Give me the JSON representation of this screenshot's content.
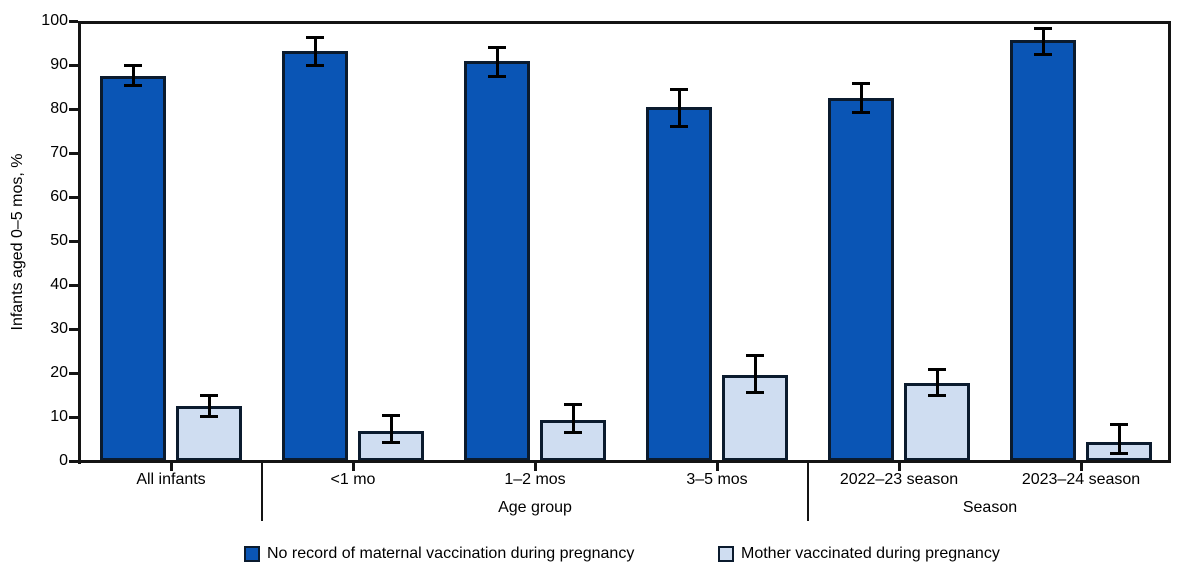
{
  "chart_data": {
    "type": "bar",
    "title": "",
    "ylabel": "Infants aged 0–5 mos, %",
    "ylim": [
      0,
      100
    ],
    "yticks": [
      0,
      10,
      20,
      30,
      40,
      50,
      60,
      70,
      80,
      90,
      100
    ],
    "grid": false,
    "legend_position": "bottom",
    "categories": [
      "All infants",
      "<1 mo",
      "1–2 mos",
      "3–5 mos",
      "2022–23 season",
      "2023–24 season"
    ],
    "sections": [
      {
        "label": "Age group",
        "start": 1,
        "end": 3
      },
      {
        "label": "Season",
        "start": 4,
        "end": 5
      }
    ],
    "series": [
      {
        "name": "No record of maternal vaccination during pregnancy",
        "color": "#0a55b5",
        "values": [
          87.5,
          93.2,
          90.8,
          80.5,
          82.4,
          95.7
        ],
        "ci_low": [
          85.4,
          89.8,
          87.5,
          76.1,
          79.3,
          92.3
        ],
        "ci_high": [
          89.8,
          96.3,
          93.9,
          84.5,
          85.7,
          98.2
        ]
      },
      {
        "name": "Mother vaccinated during pregnancy",
        "color": "#cfddf1",
        "values": [
          12.5,
          6.8,
          9.3,
          19.5,
          17.7,
          4.3
        ],
        "ci_low": [
          10.2,
          4.1,
          6.4,
          15.5,
          15.0,
          1.8
        ],
        "ci_high": [
          15.0,
          10.3,
          12.9,
          24.0,
          20.9,
          8.2
        ]
      }
    ],
    "colors": {
      "dark_bar": "#0a55b5",
      "light_bar": "#cfddf1",
      "bar_border": "#0b1b2e",
      "axis": "#141414",
      "text": "#000000"
    }
  }
}
